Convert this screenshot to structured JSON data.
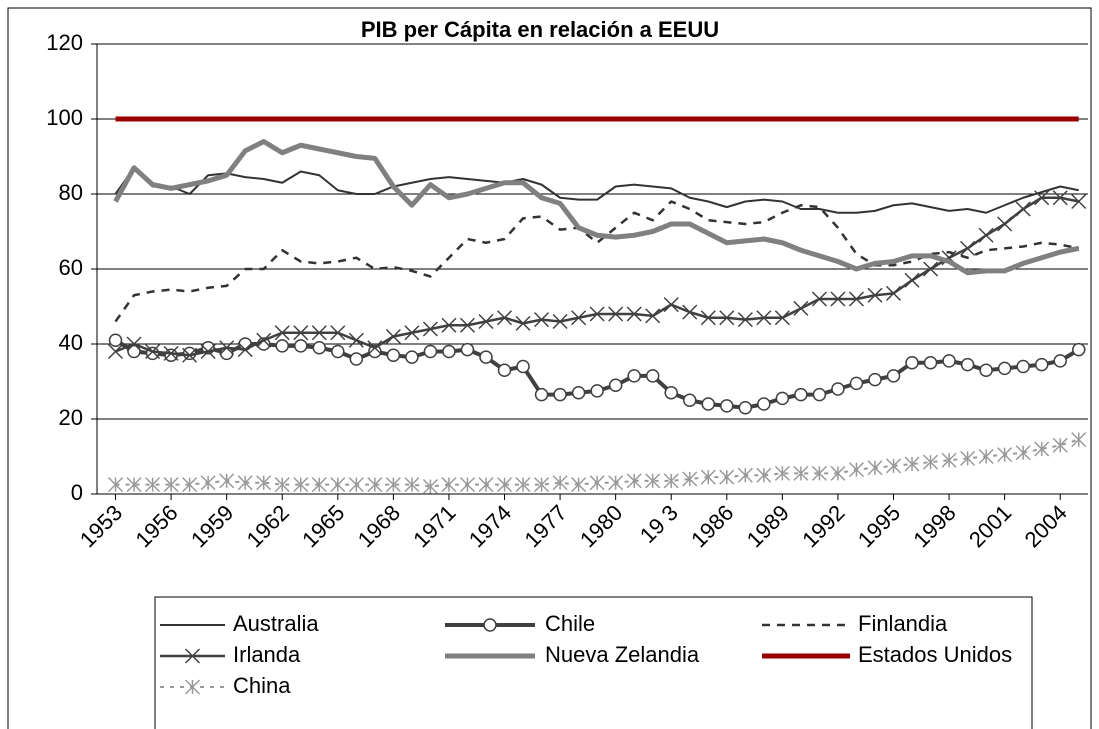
{
  "chart_data": {
    "type": "line",
    "title": "PIB per Cápita en relación a EEUU",
    "x": [
      1953,
      1954,
      1955,
      1956,
      1957,
      1958,
      1959,
      1960,
      1961,
      1962,
      1963,
      1964,
      1965,
      1966,
      1967,
      1968,
      1969,
      1970,
      1971,
      1972,
      1973,
      1974,
      1975,
      1976,
      1977,
      1978,
      1979,
      1980,
      1981,
      1982,
      1983,
      1984,
      1985,
      1986,
      1987,
      1988,
      1989,
      1990,
      1991,
      1992,
      1993,
      1994,
      1995,
      1996,
      1997,
      1998,
      1999,
      2000,
      2001,
      2002,
      2003,
      2004,
      2005
    ],
    "xlim": [
      1952,
      2005.5
    ],
    "xticks": [
      1953,
      1956,
      1959,
      1962,
      1965,
      1968,
      1971,
      1974,
      1977,
      1980,
      {
        "value": 1983,
        "label": "19 3"
      },
      1986,
      1989,
      1992,
      1995,
      1998,
      2001,
      2004
    ],
    "ylim": [
      0,
      120
    ],
    "yticks": [
      0,
      20,
      40,
      60,
      80,
      100,
      120
    ],
    "grid": true,
    "legend": "bottom",
    "series": [
      {
        "name": "Australia",
        "color": "#333333",
        "line_style": "solid",
        "marker": "none",
        "line_width": 2,
        "values": [
          80,
          87,
          82,
          82,
          80,
          85,
          85.5,
          84.5,
          84,
          83,
          86,
          85,
          81,
          80,
          80,
          82,
          83,
          84,
          84.5,
          84,
          83.5,
          83,
          84,
          82.5,
          79,
          78.5,
          78.5,
          82,
          82.5,
          82,
          81.5,
          79,
          78,
          76.5,
          78,
          78.5,
          78,
          76,
          76,
          75,
          75,
          75.5,
          77,
          77.5,
          76.5,
          75.5,
          76,
          75,
          77,
          79,
          80.5,
          82,
          81
        ]
      },
      {
        "name": "Chile",
        "color": "#404040",
        "line_style": "solid",
        "marker": "circle",
        "line_width": 4,
        "values": [
          41,
          38,
          37.5,
          37,
          37.5,
          39,
          37.5,
          40,
          40,
          39.5,
          39.5,
          39,
          38,
          36,
          38,
          37,
          36.5,
          38,
          38,
          38.5,
          36.5,
          33,
          34,
          26.5,
          26.5,
          27,
          27.5,
          29,
          31.5,
          31.5,
          27,
          25,
          24,
          23.5,
          23,
          24,
          25.5,
          26.5,
          26.5,
          28,
          29.5,
          30.5,
          31.5,
          35,
          35,
          35.5,
          34.5,
          33,
          33.5,
          34,
          34.5,
          35.5,
          38.5
        ]
      },
      {
        "name": "Finlandia",
        "color": "#333333",
        "line_style": "dashed",
        "marker": "none",
        "line_width": 2.5,
        "values": [
          46,
          53,
          54,
          54.5,
          54,
          55,
          55.5,
          60,
          60,
          65,
          62,
          61.5,
          62,
          63,
          60,
          60.5,
          59.5,
          58,
          63,
          68,
          67,
          68,
          73.5,
          74,
          70.5,
          71,
          67,
          71,
          75,
          73,
          78,
          76,
          73,
          72.5,
          72,
          72.5,
          75,
          77,
          76.5,
          71,
          64,
          61,
          61,
          62,
          64,
          64.5,
          63,
          65,
          65.5,
          66,
          67,
          66.5,
          65.5
        ]
      },
      {
        "name": "Irlanda",
        "color": "#404040",
        "line_style": "solid",
        "marker": "x",
        "line_width": 2.5,
        "values": [
          38,
          40,
          38,
          37.5,
          37,
          38,
          39,
          38.5,
          41,
          43,
          43,
          43,
          43,
          41,
          39,
          42,
          43,
          44,
          45,
          45,
          46,
          47,
          45.5,
          46.5,
          46,
          47,
          48,
          48,
          48,
          47.5,
          50.5,
          48.5,
          47,
          47,
          46.5,
          47,
          47,
          49.5,
          52,
          52,
          52,
          53,
          53.5,
          57,
          60,
          63,
          65.5,
          69,
          72,
          76,
          79,
          79,
          78
        ]
      },
      {
        "name": "Nueva Zelandia",
        "color": "#808080",
        "line_style": "solid",
        "marker": "none",
        "line_width": 5,
        "values": [
          78,
          87,
          82.5,
          81.5,
          82.5,
          83.5,
          85,
          91.5,
          94,
          91,
          93,
          92,
          91,
          90,
          89.5,
          82,
          77,
          82.5,
          79,
          80,
          81.5,
          83,
          83,
          79,
          77.5,
          71,
          69,
          68.5,
          69,
          70,
          72,
          72,
          69.5,
          67,
          67.5,
          68,
          67,
          65,
          63.5,
          62,
          60,
          61.5,
          62,
          63.5,
          63.5,
          62,
          59,
          59.5,
          59.5,
          61.5,
          63,
          64.5,
          65.5
        ]
      },
      {
        "name": "Estados Unidos",
        "color": "#990000",
        "line_style": "solid",
        "marker": "none",
        "line_width": 5,
        "values": [
          100,
          100,
          100,
          100,
          100,
          100,
          100,
          100,
          100,
          100,
          100,
          100,
          100,
          100,
          100,
          100,
          100,
          100,
          100,
          100,
          100,
          100,
          100,
          100,
          100,
          100,
          100,
          100,
          100,
          100,
          100,
          100,
          100,
          100,
          100,
          100,
          100,
          100,
          100,
          100,
          100,
          100,
          100,
          100,
          100,
          100,
          100,
          100,
          100,
          100,
          100,
          100,
          100
        ]
      },
      {
        "name": "China",
        "color": "#999999",
        "line_style": "dotted",
        "marker": "asterisk",
        "line_width": 2,
        "values": [
          2.5,
          2.5,
          2.5,
          2.5,
          2.5,
          3,
          3.5,
          3,
          3,
          2.5,
          2.5,
          2.5,
          2.5,
          2.5,
          2.5,
          2.5,
          2.5,
          2,
          2.5,
          2.5,
          2.5,
          2.5,
          2.5,
          2.5,
          3,
          2.5,
          3,
          3,
          3.5,
          3.5,
          3.5,
          4,
          4.5,
          4.5,
          5,
          5,
          5.5,
          5.5,
          5.5,
          5.5,
          6.5,
          7,
          7.5,
          8,
          8.5,
          9,
          9.5,
          10,
          10.5,
          11,
          12,
          13,
          14.5
        ]
      }
    ]
  }
}
